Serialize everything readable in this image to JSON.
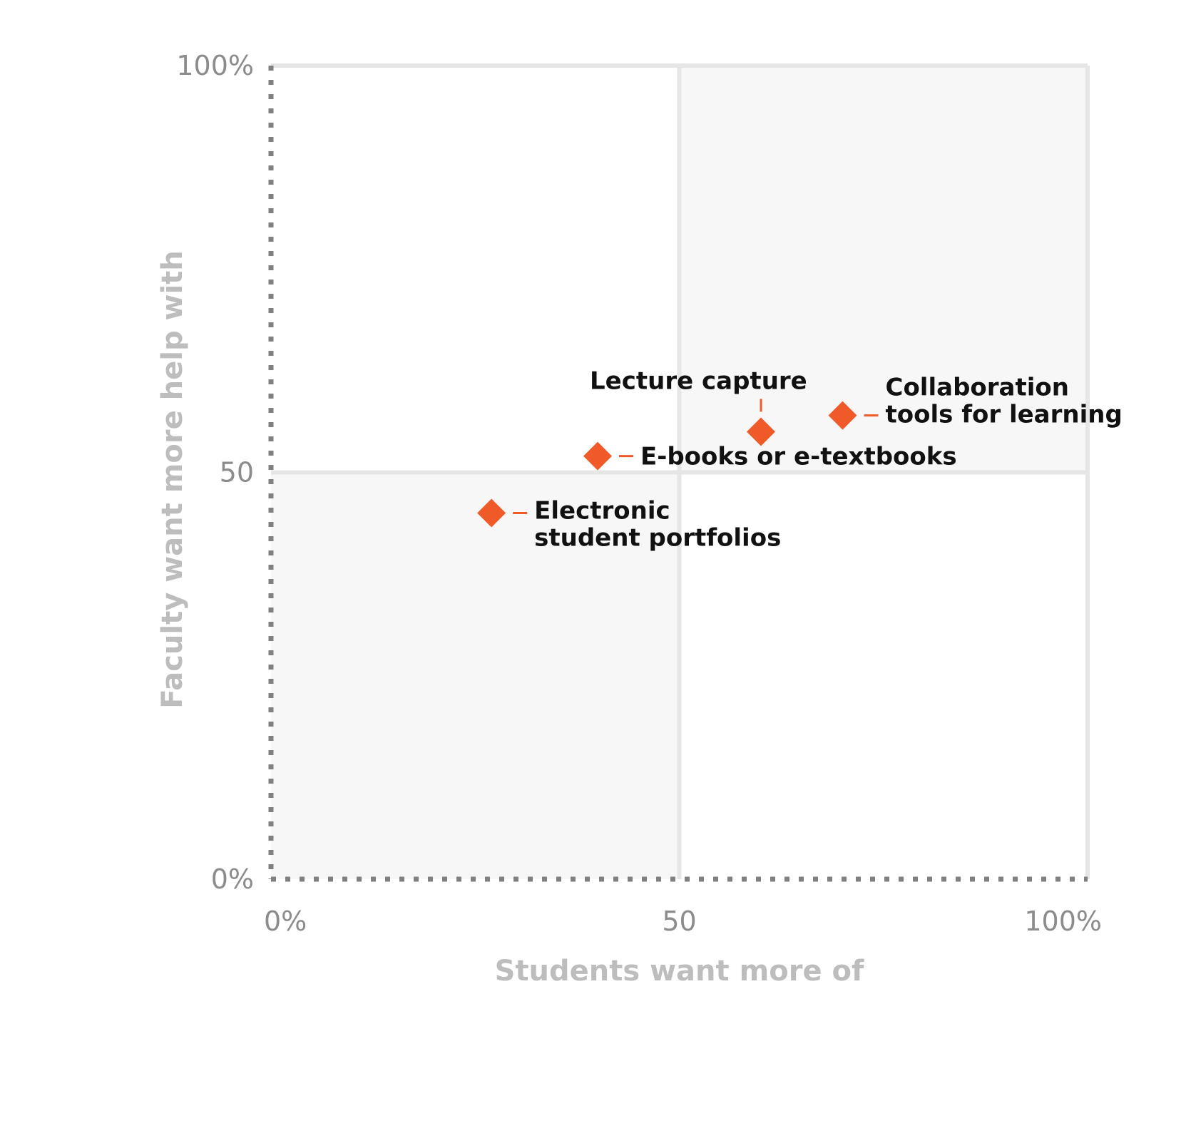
{
  "chart_data": {
    "type": "scatter",
    "xlabel": "Students want more of",
    "ylabel": "Faculty want more help with",
    "xlim": [
      0,
      100
    ],
    "ylim": [
      0,
      100
    ],
    "x_ticks": [
      {
        "value": 0,
        "label": "0%"
      },
      {
        "value": 50,
        "label": "50"
      },
      {
        "value": 100,
        "label": "100%"
      }
    ],
    "y_ticks": [
      {
        "value": 0,
        "label": "0%"
      },
      {
        "value": 50,
        "label": "50"
      },
      {
        "value": 100,
        "label": "100%"
      }
    ],
    "grid": "quadrant lines at 50",
    "marker": "diamond",
    "colors": {
      "point": "#f05a28",
      "shaded_quadrant": "#f7f7f7",
      "divider": "#e6e6e6",
      "axis_dots": "#808080",
      "tick_text": "#8c8c8c",
      "axis_title": "#bdbdbd",
      "label_text": "#111111"
    },
    "points": [
      {
        "name": "Electronic student portfolios",
        "lines": [
          "Electronic",
          "student portfolios"
        ],
        "x": 27,
        "y": 45,
        "label_side": "right-below"
      },
      {
        "name": "E-books or e-textbooks",
        "lines": [
          "E-books or e-textbooks"
        ],
        "x": 40,
        "y": 52,
        "label_side": "right"
      },
      {
        "name": "Lecture capture",
        "lines": [
          "Lecture capture"
        ],
        "x": 60,
        "y": 55,
        "label_side": "above"
      },
      {
        "name": "Collaboration tools for learning",
        "lines": [
          "Collaboration",
          "tools for learning"
        ],
        "x": 70,
        "y": 57,
        "label_side": "right"
      }
    ]
  }
}
